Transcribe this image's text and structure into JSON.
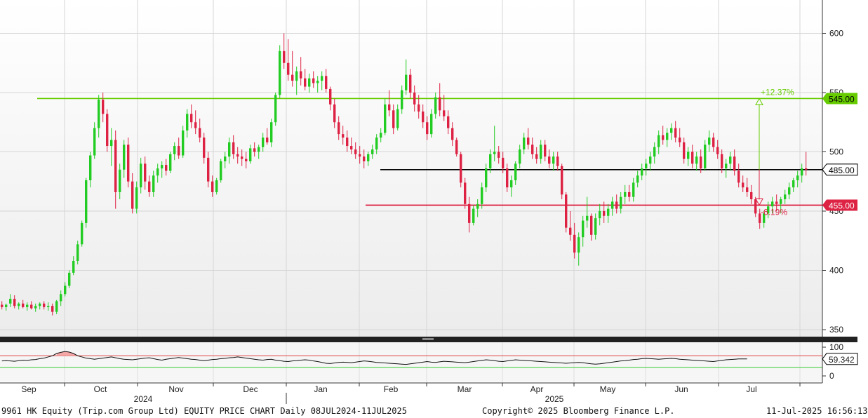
{
  "chart_data": {
    "type": "candlestick",
    "security": "9961 HK Equity (Trip.com Group Ltd)",
    "period": "Daily 08JUL2024-11JUL2025",
    "ylim": [
      345,
      625
    ],
    "yticks": [
      "600",
      "550",
      "500",
      "450",
      "400",
      "350"
    ],
    "months": [
      "Sep",
      "Oct",
      "Nov",
      "Dec",
      "Jan",
      "Feb",
      "Mar",
      "Apr",
      "May",
      "Jun",
      "Jul"
    ],
    "years": [
      "2024",
      "2025"
    ],
    "colors": {
      "up": "#22cc22",
      "down": "#dd2244",
      "resistance": "#66cc00",
      "support": "#dd2244",
      "current": "#000000"
    },
    "levels": [
      {
        "id": "resistance",
        "value": 545.0,
        "label": "545.00"
      },
      {
        "id": "current",
        "value": 485.0,
        "label": "485.00"
      },
      {
        "id": "support",
        "value": 455.0,
        "label": "455.00"
      }
    ],
    "annotations": {
      "upside": "+12.37%",
      "downside": "-6.19%"
    },
    "candles": [
      [
        371,
        374,
        367,
        369
      ],
      [
        369,
        372,
        366,
        371
      ],
      [
        372,
        380,
        369,
        376
      ],
      [
        376,
        379,
        368,
        370
      ],
      [
        370,
        373,
        367,
        372
      ],
      [
        372,
        375,
        368,
        369
      ],
      [
        369,
        373,
        366,
        371
      ],
      [
        371,
        374,
        367,
        368
      ],
      [
        368,
        372,
        365,
        370
      ],
      [
        370,
        373,
        367,
        372
      ],
      [
        372,
        374,
        367,
        369
      ],
      [
        369,
        373,
        366,
        370
      ],
      [
        370,
        372,
        362,
        365
      ],
      [
        365,
        375,
        363,
        374
      ],
      [
        374,
        383,
        370,
        380
      ],
      [
        380,
        390,
        378,
        387
      ],
      [
        387,
        400,
        385,
        398
      ],
      [
        398,
        412,
        396,
        408
      ],
      [
        408,
        425,
        405,
        422
      ],
      [
        422,
        442,
        420,
        440
      ],
      [
        440,
        478,
        436,
        476
      ],
      [
        476,
        500,
        470,
        497
      ],
      [
        497,
        525,
        494,
        520
      ],
      [
        520,
        548,
        512,
        544
      ],
      [
        544,
        550,
        525,
        532
      ],
      [
        532,
        536,
        500,
        505
      ],
      [
        505,
        520,
        488,
        510
      ],
      [
        510,
        518,
        452,
        466
      ],
      [
        466,
        490,
        460,
        485
      ],
      [
        485,
        510,
        478,
        506
      ],
      [
        506,
        512,
        470,
        475
      ],
      [
        475,
        482,
        448,
        452
      ],
      [
        452,
        475,
        448,
        470
      ],
      [
        470,
        495,
        465,
        490
      ],
      [
        490,
        496,
        468,
        475
      ],
      [
        475,
        480,
        462,
        466
      ],
      [
        466,
        484,
        462,
        480
      ],
      [
        480,
        490,
        474,
        486
      ],
      [
        486,
        492,
        478,
        489
      ],
      [
        489,
        494,
        480,
        484
      ],
      [
        484,
        500,
        482,
        498
      ],
      [
        498,
        508,
        493,
        505
      ],
      [
        505,
        512,
        494,
        497
      ],
      [
        497,
        522,
        495,
        518
      ],
      [
        518,
        536,
        512,
        532
      ],
      [
        532,
        540,
        520,
        525
      ],
      [
        525,
        535,
        515,
        520
      ],
      [
        520,
        528,
        508,
        512
      ],
      [
        512,
        516,
        490,
        495
      ],
      [
        495,
        500,
        470,
        475
      ],
      [
        475,
        480,
        462,
        466
      ],
      [
        466,
        478,
        464,
        476
      ],
      [
        476,
        494,
        474,
        492
      ],
      [
        492,
        500,
        486,
        496
      ],
      [
        496,
        512,
        490,
        508
      ],
      [
        508,
        514,
        494,
        498
      ],
      [
        498,
        504,
        490,
        496
      ],
      [
        496,
        502,
        488,
        494
      ],
      [
        494,
        500,
        486,
        492
      ],
      [
        492,
        506,
        490,
        503
      ],
      [
        503,
        508,
        496,
        500
      ],
      [
        500,
        506,
        494,
        504
      ],
      [
        504,
        516,
        500,
        512
      ],
      [
        512,
        520,
        506,
        508
      ],
      [
        508,
        528,
        504,
        525
      ],
      [
        525,
        550,
        522,
        548
      ],
      [
        548,
        590,
        545,
        585
      ],
      [
        585,
        600,
        570,
        575
      ],
      [
        575,
        595,
        560,
        565
      ],
      [
        565,
        585,
        555,
        560
      ],
      [
        560,
        572,
        548,
        568
      ],
      [
        568,
        580,
        556,
        562
      ],
      [
        562,
        570,
        552,
        555
      ],
      [
        555,
        566,
        550,
        562
      ],
      [
        562,
        568,
        554,
        558
      ],
      [
        558,
        564,
        550,
        560
      ],
      [
        560,
        568,
        552,
        564
      ],
      [
        564,
        570,
        550,
        553
      ],
      [
        553,
        555,
        535,
        540
      ],
      [
        540,
        545,
        520,
        525
      ],
      [
        525,
        530,
        510,
        515
      ],
      [
        515,
        522,
        506,
        512
      ],
      [
        512,
        518,
        500,
        505
      ],
      [
        505,
        512,
        498,
        502
      ],
      [
        502,
        508,
        494,
        498
      ],
      [
        498,
        505,
        490,
        496
      ],
      [
        496,
        502,
        486,
        492
      ],
      [
        492,
        500,
        488,
        498
      ],
      [
        498,
        506,
        494,
        502
      ],
      [
        502,
        515,
        498,
        512
      ],
      [
        512,
        520,
        508,
        516
      ],
      [
        516,
        545,
        514,
        540
      ],
      [
        540,
        552,
        530,
        535
      ],
      [
        535,
        540,
        515,
        520
      ],
      [
        520,
        540,
        518,
        536
      ],
      [
        536,
        556,
        532,
        552
      ],
      [
        552,
        578,
        548,
        565
      ],
      [
        565,
        570,
        545,
        550
      ],
      [
        550,
        556,
        534,
        540
      ],
      [
        540,
        548,
        528,
        534
      ],
      [
        534,
        540,
        520,
        525
      ],
      [
        525,
        530,
        510,
        515
      ],
      [
        515,
        536,
        512,
        532
      ],
      [
        532,
        550,
        528,
        546
      ],
      [
        546,
        558,
        530,
        535
      ],
      [
        535,
        548,
        526,
        530
      ],
      [
        530,
        535,
        515,
        520
      ],
      [
        520,
        525,
        505,
        510
      ],
      [
        510,
        512,
        496,
        498
      ],
      [
        498,
        500,
        470,
        474
      ],
      [
        474,
        478,
        452,
        456
      ],
      [
        456,
        462,
        432,
        440
      ],
      [
        440,
        455,
        438,
        452
      ],
      [
        452,
        460,
        445,
        456
      ],
      [
        456,
        474,
        452,
        470
      ],
      [
        470,
        490,
        466,
        486
      ],
      [
        486,
        502,
        482,
        498
      ],
      [
        498,
        522,
        492,
        500
      ],
      [
        500,
        505,
        490,
        495
      ],
      [
        495,
        500,
        482,
        486
      ],
      [
        486,
        490,
        466,
        470
      ],
      [
        470,
        480,
        462,
        476
      ],
      [
        476,
        492,
        472,
        490
      ],
      [
        490,
        506,
        486,
        502
      ],
      [
        502,
        516,
        498,
        512
      ],
      [
        512,
        520,
        502,
        506
      ],
      [
        506,
        512,
        494,
        498
      ],
      [
        498,
        504,
        490,
        494
      ],
      [
        494,
        510,
        490,
        506
      ],
      [
        506,
        510,
        492,
        496
      ],
      [
        496,
        502,
        486,
        490
      ],
      [
        490,
        500,
        484,
        496
      ],
      [
        496,
        500,
        484,
        488
      ],
      [
        488,
        490,
        460,
        464
      ],
      [
        464,
        466,
        432,
        436
      ],
      [
        436,
        450,
        425,
        430
      ],
      [
        430,
        440,
        410,
        415
      ],
      [
        415,
        432,
        404,
        428
      ],
      [
        428,
        446,
        420,
        442
      ],
      [
        442,
        462,
        436,
        446
      ],
      [
        446,
        448,
        425,
        430
      ],
      [
        430,
        448,
        426,
        444
      ],
      [
        444,
        456,
        438,
        450
      ],
      [
        450,
        458,
        440,
        446
      ],
      [
        446,
        456,
        440,
        452
      ],
      [
        452,
        462,
        446,
        458
      ],
      [
        458,
        464,
        448,
        452
      ],
      [
        452,
        466,
        448,
        462
      ],
      [
        462,
        472,
        456,
        466
      ],
      [
        466,
        472,
        458,
        462
      ],
      [
        462,
        478,
        458,
        474
      ],
      [
        474,
        484,
        470,
        480
      ],
      [
        480,
        490,
        476,
        486
      ],
      [
        486,
        494,
        480,
        490
      ],
      [
        490,
        500,
        484,
        496
      ],
      [
        496,
        508,
        490,
        504
      ],
      [
        504,
        518,
        498,
        514
      ],
      [
        514,
        522,
        506,
        510
      ],
      [
        510,
        520,
        504,
        516
      ],
      [
        516,
        524,
        510,
        520
      ],
      [
        520,
        526,
        508,
        512
      ],
      [
        512,
        520,
        504,
        508
      ],
      [
        508,
        512,
        490,
        494
      ],
      [
        494,
        504,
        488,
        500
      ],
      [
        500,
        506,
        486,
        490
      ],
      [
        490,
        500,
        484,
        496
      ],
      [
        496,
        502,
        482,
        486
      ],
      [
        486,
        510,
        484,
        506
      ],
      [
        506,
        518,
        500,
        512
      ],
      [
        512,
        516,
        500,
        504
      ],
      [
        504,
        510,
        494,
        498
      ],
      [
        498,
        502,
        482,
        486
      ],
      [
        486,
        494,
        478,
        490
      ],
      [
        490,
        500,
        484,
        496
      ],
      [
        496,
        502,
        480,
        484
      ],
      [
        484,
        490,
        470,
        474
      ],
      [
        474,
        480,
        466,
        470
      ],
      [
        470,
        478,
        462,
        466
      ],
      [
        466,
        472,
        456,
        460
      ],
      [
        460,
        462,
        445,
        448
      ],
      [
        448,
        452,
        435,
        440
      ],
      [
        440,
        450,
        436,
        448
      ],
      [
        448,
        458,
        444,
        454
      ],
      [
        454,
        462,
        448,
        458
      ],
      [
        458,
        464,
        450,
        456
      ],
      [
        456,
        462,
        448,
        460
      ],
      [
        460,
        468,
        456,
        464
      ],
      [
        464,
        474,
        460,
        470
      ],
      [
        470,
        478,
        466,
        476
      ],
      [
        476,
        484,
        470,
        480
      ],
      [
        480,
        490,
        474,
        486
      ],
      [
        486,
        500,
        480,
        485
      ]
    ],
    "rsi": {
      "ylim": [
        0,
        100
      ],
      "ticks": [
        "100",
        "0"
      ],
      "overbought": 70,
      "oversold": 30,
      "current_label": "59.342",
      "values": [
        52,
        53,
        52,
        51,
        53,
        55,
        54,
        56,
        57,
        60,
        62,
        66,
        70,
        78,
        82,
        85,
        83,
        78,
        70,
        66,
        62,
        60,
        58,
        60,
        62,
        64,
        66,
        63,
        60,
        58,
        57,
        56,
        58,
        60,
        62,
        63,
        60,
        57,
        55,
        58,
        60,
        62,
        64,
        62,
        60,
        58,
        57,
        55,
        53,
        55,
        57,
        58,
        60,
        61,
        63,
        64,
        66,
        64,
        62,
        60,
        58,
        56,
        55,
        57,
        58,
        55,
        53,
        51,
        50,
        52,
        53,
        55,
        56,
        55,
        52,
        50,
        47,
        44,
        43,
        45,
        47,
        48,
        47,
        46,
        48,
        50,
        52,
        51,
        49,
        47,
        46,
        45,
        44,
        43,
        42,
        41,
        40,
        42,
        44,
        46,
        48,
        50,
        48,
        47,
        49,
        51,
        50,
        49,
        48,
        47,
        46,
        48,
        50,
        52,
        54,
        56,
        55,
        53,
        51,
        50,
        52,
        54,
        56,
        55,
        54,
        53,
        52,
        51,
        50,
        49,
        48,
        47,
        46,
        45,
        44,
        45,
        46,
        47,
        46,
        44,
        42,
        41,
        42,
        44,
        46,
        48,
        50,
        52,
        53,
        55,
        57,
        58,
        60,
        61,
        60,
        59,
        58,
        59,
        60,
        61,
        60,
        58,
        57,
        56,
        55,
        54,
        53,
        52,
        51,
        50,
        52,
        54,
        56,
        57,
        58,
        59,
        59,
        59
      ]
    }
  },
  "footer": {
    "left": "9961 HK Equity (Trip.com Group Ltd) EQUITY PRICE CHART  Daily 08JUL2024-11JUL2025",
    "center": "Copyright© 2025 Bloomberg Finance L.P.",
    "right": "11-Jul-2025 16:56:13"
  }
}
